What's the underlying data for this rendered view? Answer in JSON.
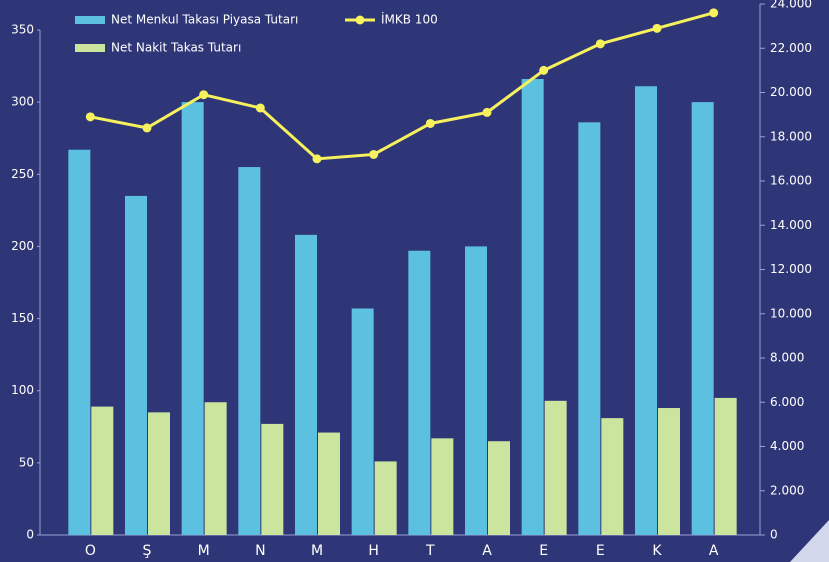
{
  "chart_data": {
    "type": "bar",
    "categories": [
      "O",
      "Ş",
      "M",
      "N",
      "M",
      "H",
      "T",
      "A",
      "E",
      "E",
      "K",
      "A"
    ],
    "series": [
      {
        "name": "Net Menkul Takası Piyasa Tutarı",
        "type": "bar",
        "color": "#5cc0e0",
        "values": [
          267,
          235,
          300,
          255,
          208,
          157,
          197,
          200,
          316,
          286,
          311,
          300
        ]
      },
      {
        "name": "Net Nakit Takas Tutarı",
        "type": "bar",
        "color": "#cbe59e",
        "values": [
          89,
          85,
          92,
          77,
          71,
          51,
          67,
          65,
          93,
          81,
          88,
          95
        ]
      },
      {
        "name": "İMKB 100",
        "type": "line",
        "axis": "y2",
        "color": "#f6f15c",
        "values": [
          18900,
          18400,
          19900,
          19300,
          17000,
          17200,
          18600,
          19100,
          21000,
          22200,
          22900,
          23600
        ]
      }
    ],
    "ylim": [
      0,
      368
    ],
    "yticks": [
      0,
      50,
      100,
      150,
      200,
      250,
      300,
      350
    ],
    "y2lim": [
      0,
      24000
    ],
    "y2ticks": [
      0,
      {
        "value": 2000,
        "label": "2.000"
      },
      {
        "value": 4000,
        "label": "4.000"
      },
      {
        "value": 6000,
        "label": "6.000"
      },
      {
        "value": 8000,
        "label": "8.000"
      },
      {
        "value": 10000,
        "label": "10.000"
      },
      {
        "value": 12000,
        "label": "12.000"
      },
      {
        "value": 14000,
        "label": "14.000"
      },
      {
        "value": 16000,
        "label": "16.000"
      },
      {
        "value": 18000,
        "label": "18.000"
      },
      {
        "value": 20000,
        "label": "20.000"
      },
      {
        "value": 22000,
        "label": "22.000"
      },
      {
        "value": 24000,
        "label": "24.000"
      }
    ],
    "grid": false
  }
}
